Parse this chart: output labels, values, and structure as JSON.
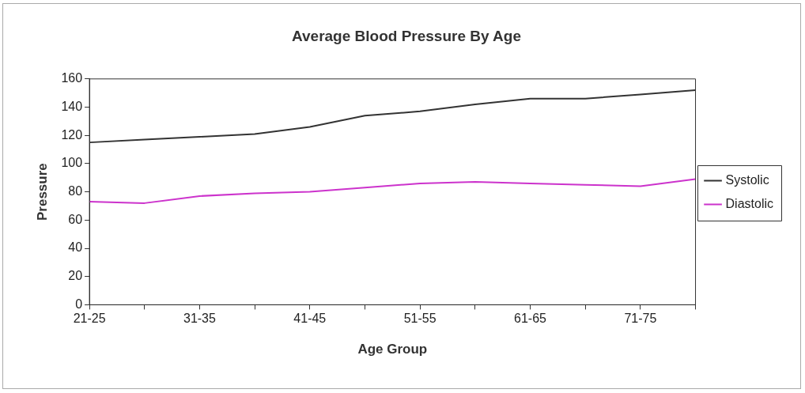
{
  "chart_data": {
    "type": "line",
    "title": "Average Blood Pressure By Age",
    "xlabel": "Age Group",
    "ylabel": "Pressure",
    "categories": [
      "21-25",
      null,
      "31-35",
      null,
      "41-45",
      null,
      "51-55",
      null,
      "61-65",
      null,
      "71-75",
      null
    ],
    "series": [
      {
        "name": "Systolic",
        "color": "#333333",
        "values": [
          115,
          117,
          119,
          121,
          126,
          134,
          137,
          142,
          146,
          146,
          149,
          152
        ]
      },
      {
        "name": "Diastolic",
        "color": "#cc33cc",
        "values": [
          73,
          72,
          77,
          79,
          80,
          83,
          86,
          87,
          86,
          85,
          84,
          89
        ]
      }
    ],
    "ylim": [
      0,
      160
    ],
    "yticks": [
      0,
      20,
      40,
      60,
      80,
      100,
      120,
      140,
      160
    ],
    "grid": false,
    "legend": "right",
    "marker": "none",
    "line_style": "solid"
  }
}
